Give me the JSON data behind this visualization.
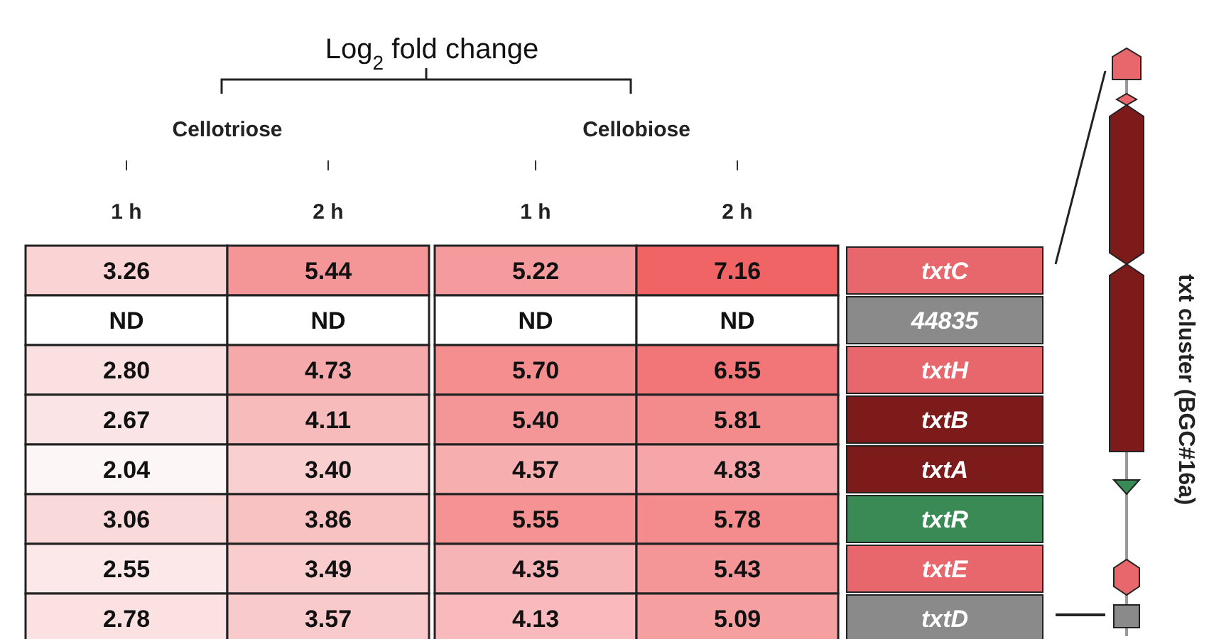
{
  "chart_data": {
    "type": "heatmap",
    "title": "Log$_{2}$ fold change",
    "categories": [
      "1 h",
      "2 h",
      "1 h",
      "2 h"
    ],
    "cells": [
      [
        3.26,
        5.44,
        5.22,
        7.16
      ],
      [
        null,
        null,
        null,
        null
      ],
      [
        2.8,
        4.73,
        5.7,
        6.55
      ],
      [
        2.67,
        4.11,
        5.4,
        5.81
      ],
      [
        2.04,
        3.4,
        4.57,
        4.83
      ],
      [
        3.06,
        3.86,
        5.55,
        5.78
      ],
      [
        2.55,
        3.49,
        4.35,
        5.43
      ],
      [
        2.78,
        3.57,
        4.13,
        5.09
      ]
    ],
    "cell_labels": [
      [
        "3.26",
        "5.44",
        "5.22",
        "7.16"
      ],
      [
        "ND",
        "ND",
        "ND",
        "ND"
      ],
      [
        "2.80",
        "4.73",
        "5.70",
        "6.55"
      ],
      [
        "2.67",
        "4.11",
        "5.40",
        "5.81"
      ],
      [
        "2.04",
        "3.40",
        "4.57",
        "4.83"
      ],
      [
        "3.06",
        "3.86",
        "5.55",
        "5.78"
      ],
      [
        "2.55",
        "3.49",
        "4.35",
        "5.43"
      ],
      [
        "2.78",
        "3.57",
        "4.13",
        "5.09"
      ]
    ],
    "y_categories": [
      "txtC",
      "44835",
      "txtH",
      "txtB",
      "txtA",
      "txtR",
      "txtE",
      "txtD"
    ],
    "annotations": [
      "Cellotriose",
      "Cellobiose",
      "txt cluster (BGC#16a)"
    ]
  }
}
